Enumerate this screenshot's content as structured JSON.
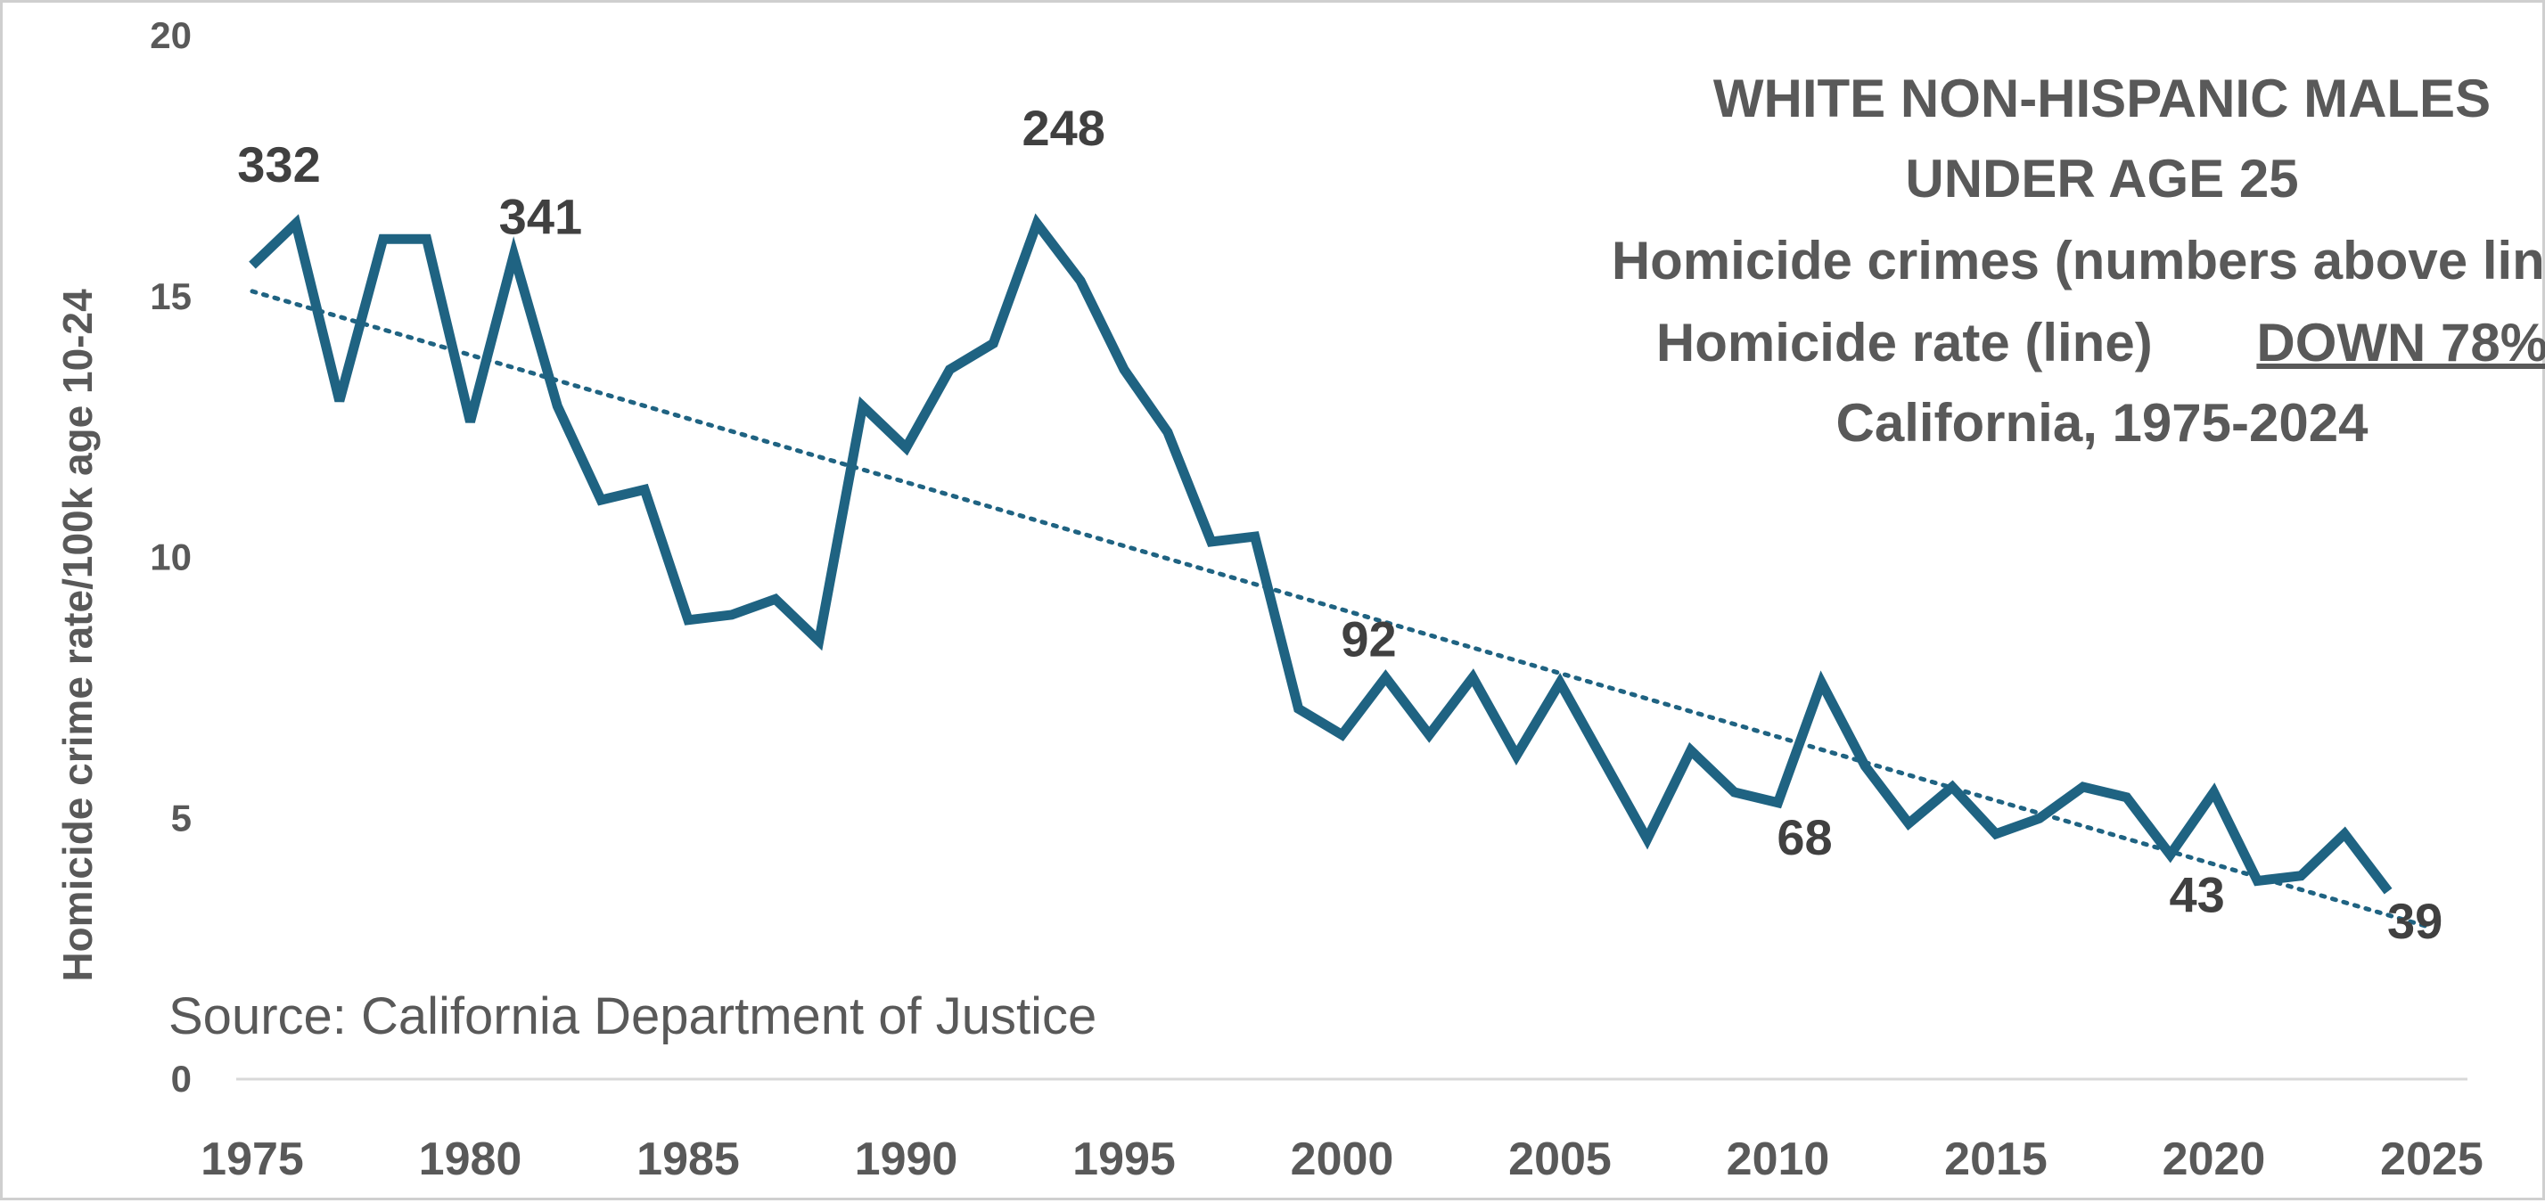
{
  "chart_data": {
    "type": "line",
    "title_lines": [
      "WHITE NON-HISPANIC MALES",
      "UNDER AGE 25",
      "Homicide crimes (numbers above line)"
    ],
    "title_line4": {
      "text": "Homicide rate (line)",
      "emphasis": "DOWN 78%"
    },
    "title_line5": "California, 1975-2024",
    "source": "Source: California Department of Justice",
    "xlabel": "",
    "ylabel": "Homicide crime rate/100k age 10-24",
    "xlim": [
      1975,
      2025
    ],
    "ylim": [
      0,
      20
    ],
    "x_ticks": [
      1975,
      1980,
      1985,
      1990,
      1995,
      2000,
      2005,
      2010,
      2015,
      2020,
      2025
    ],
    "y_ticks": [
      0,
      5,
      10,
      15,
      20
    ],
    "grid": false,
    "legend": "none",
    "colors": {
      "line": "#1f6382",
      "trend": "#1f6382",
      "text": "#595959",
      "axis": "#d9d9d9"
    },
    "series": [
      {
        "x": [
          1975,
          1976,
          1977,
          1978,
          1979,
          1980,
          1981,
          1982,
          1983,
          1984,
          1985,
          1986,
          1987,
          1988,
          1989,
          1990,
          1991,
          1992,
          1993,
          1994,
          1995,
          1996,
          1997,
          1998,
          1999,
          2000,
          2001,
          2002,
          2003,
          2004,
          2005,
          2006,
          2007,
          2008,
          2009,
          2010,
          2011,
          2012,
          2013,
          2014,
          2015,
          2016,
          2017,
          2018,
          2019,
          2020,
          2021,
          2022,
          2023,
          2024
        ],
        "y": [
          15.6,
          16.4,
          13.0,
          16.1,
          16.1,
          12.6,
          15.8,
          12.9,
          11.1,
          11.3,
          8.8,
          8.9,
          9.2,
          8.4,
          12.9,
          12.1,
          13.6,
          14.1,
          16.4,
          15.3,
          13.6,
          12.4,
          10.3,
          10.4,
          7.1,
          6.6,
          7.7,
          6.6,
          7.7,
          6.2,
          7.6,
          6.1,
          4.6,
          6.3,
          5.5,
          5.3,
          7.6,
          6.0,
          4.9,
          5.6,
          4.7,
          5.0,
          5.6,
          5.4,
          4.3,
          5.5,
          3.8,
          3.9,
          4.7,
          3.6
        ]
      }
    ],
    "trendline": {
      "style": "dotted",
      "x": [
        1975,
        2025
      ],
      "y": [
        15.1,
        2.9
      ]
    },
    "annotations": [
      {
        "text": "332",
        "x": 1975,
        "y": 17.2
      },
      {
        "text": "341",
        "x": 1981,
        "y": 16.2
      },
      {
        "text": "248",
        "x": 1993,
        "y": 17.9
      },
      {
        "text": "92",
        "x": 2000,
        "y": 8.1
      },
      {
        "text": "68",
        "x": 2010,
        "y": 4.3
      },
      {
        "text": "43",
        "x": 2019,
        "y": 3.2
      },
      {
        "text": "39",
        "x": 2024,
        "y": 2.7
      }
    ]
  }
}
